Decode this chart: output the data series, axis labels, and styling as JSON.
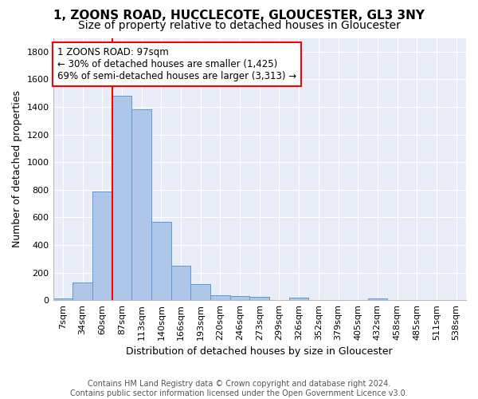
{
  "title1": "1, ZOONS ROAD, HUCCLECOTE, GLOUCESTER, GL3 3NY",
  "title2": "Size of property relative to detached houses in Gloucester",
  "xlabel": "Distribution of detached houses by size in Gloucester",
  "ylabel": "Number of detached properties",
  "footer1": "Contains HM Land Registry data © Crown copyright and database right 2024.",
  "footer2": "Contains public sector information licensed under the Open Government Licence v3.0.",
  "categories": [
    "7sqm",
    "34sqm",
    "60sqm",
    "87sqm",
    "113sqm",
    "140sqm",
    "166sqm",
    "193sqm",
    "220sqm",
    "246sqm",
    "273sqm",
    "299sqm",
    "326sqm",
    "352sqm",
    "379sqm",
    "405sqm",
    "432sqm",
    "458sqm",
    "485sqm",
    "511sqm",
    "538sqm"
  ],
  "bar_values": [
    10,
    130,
    790,
    1480,
    1380,
    570,
    250,
    115,
    35,
    30,
    25,
    0,
    20,
    0,
    0,
    0,
    15,
    0,
    0,
    0,
    0
  ],
  "bar_color": "#aec6e8",
  "bar_edge_color": "#5b9bd5",
  "vline_x": 3.0,
  "vline_color": "red",
  "annotation_text": "1 ZOONS ROAD: 97sqm\n← 30% of detached houses are smaller (1,425)\n69% of semi-detached houses are larger (3,313) →",
  "annotation_box_color": "white",
  "annotation_box_edge_color": "red",
  "ylim": [
    0,
    1900
  ],
  "yticks": [
    0,
    200,
    400,
    600,
    800,
    1000,
    1200,
    1400,
    1600,
    1800
  ],
  "background_color": "#e8edf8",
  "grid_color": "#ffffff",
  "title1_fontsize": 11,
  "title2_fontsize": 10,
  "xlabel_fontsize": 9,
  "ylabel_fontsize": 9,
  "tick_fontsize": 8,
  "annotation_fontsize": 8.5,
  "footer_fontsize": 7
}
